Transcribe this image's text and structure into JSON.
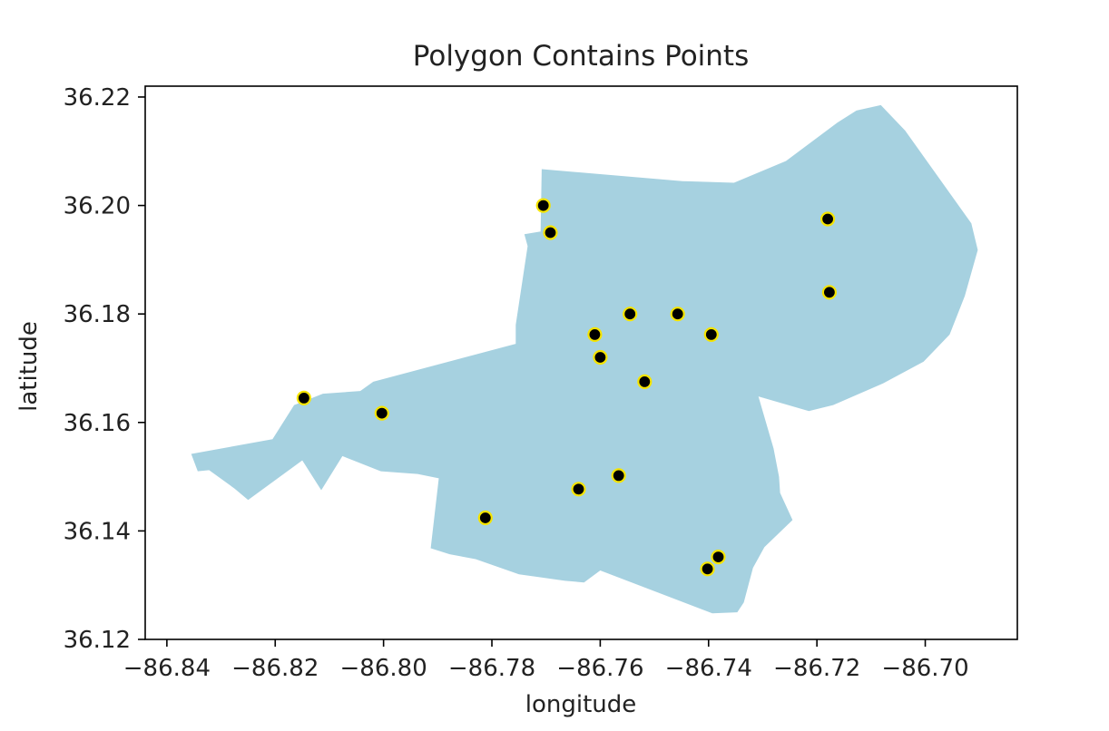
{
  "chart_data": {
    "type": "scatter",
    "title": "Polygon Contains Points",
    "xlabel": "longitude",
    "ylabel": "latitude",
    "xlim": [
      -86.844,
      -86.683
    ],
    "ylim": [
      36.12,
      36.222
    ],
    "xticks": [
      -86.84,
      -86.82,
      -86.8,
      -86.78,
      -86.76,
      -86.74,
      -86.72,
      -86.7
    ],
    "xtick_labels": [
      "−86.84",
      "−86.82",
      "−86.80",
      "−86.78",
      "−86.76",
      "−86.74",
      "−86.72",
      "−86.70"
    ],
    "yticks": [
      36.12,
      36.14,
      36.16,
      36.18,
      36.2,
      36.22
    ],
    "ytick_labels": [
      "36.12",
      "36.14",
      "36.16",
      "36.18",
      "36.20",
      "36.22"
    ],
    "grid": false,
    "polygon_color": "#a6d1e0",
    "point_color": "#000000",
    "point_edge_color": "#f5e400",
    "polygon": [
      [
        -86.8355,
        36.1542
      ],
      [
        -86.8205,
        36.1569
      ],
      [
        -86.8165,
        36.1632
      ],
      [
        -86.8112,
        36.1653
      ],
      [
        -86.8043,
        36.1658
      ],
      [
        -86.8019,
        36.1675
      ],
      [
        -86.7756,
        36.1745
      ],
      [
        -86.7756,
        36.178
      ],
      [
        -86.7734,
        36.1925
      ],
      [
        -86.774,
        36.1947
      ],
      [
        -86.771,
        36.1952
      ],
      [
        -86.7708,
        36.2067
      ],
      [
        -86.7448,
        36.2045
      ],
      [
        -86.7353,
        36.2042
      ],
      [
        -86.7257,
        36.2082
      ],
      [
        -86.7162,
        36.2153
      ],
      [
        -86.7127,
        36.2175
      ],
      [
        -86.7082,
        36.2185
      ],
      [
        -86.7037,
        36.2138
      ],
      [
        -86.6915,
        36.1967
      ],
      [
        -86.6903,
        36.1918
      ],
      [
        -86.6927,
        36.1833
      ],
      [
        -86.6955,
        36.1762
      ],
      [
        -86.7003,
        36.1712
      ],
      [
        -86.7078,
        36.1672
      ],
      [
        -86.717,
        36.1632
      ],
      [
        -86.7215,
        36.1621
      ],
      [
        -86.7308,
        36.1648
      ],
      [
        -86.728,
        36.1552
      ],
      [
        -86.727,
        36.15
      ],
      [
        -86.7268,
        36.147
      ],
      [
        -86.7245,
        36.142
      ],
      [
        -86.7297,
        36.137
      ],
      [
        -86.7318,
        36.1332
      ],
      [
        -86.7335,
        36.1268
      ],
      [
        -86.7347,
        36.125
      ],
      [
        -86.7393,
        36.1248
      ],
      [
        -86.76,
        36.1327
      ],
      [
        -86.763,
        36.1305
      ],
      [
        -86.7665,
        36.1308
      ],
      [
        -86.775,
        36.132
      ],
      [
        -86.783,
        36.1348
      ],
      [
        -86.7878,
        36.1357
      ],
      [
        -86.7913,
        36.1368
      ],
      [
        -86.7898,
        36.1497
      ],
      [
        -86.7937,
        36.1505
      ],
      [
        -86.8005,
        36.151
      ],
      [
        -86.8076,
        36.1538
      ],
      [
        -86.8115,
        36.1475
      ],
      [
        -86.815,
        36.153
      ],
      [
        -86.825,
        36.1457
      ],
      [
        -86.8275,
        36.1478
      ],
      [
        -86.8322,
        36.1512
      ],
      [
        -86.8343,
        36.151
      ]
    ],
    "points": [
      {
        "x": -86.8147,
        "y": 36.1645
      },
      {
        "x": -86.8003,
        "y": 36.1617
      },
      {
        "x": -86.7812,
        "y": 36.1424
      },
      {
        "x": -86.7705,
        "y": 36.2
      },
      {
        "x": -86.7692,
        "y": 36.195
      },
      {
        "x": -86.764,
        "y": 36.1477
      },
      {
        "x": -86.761,
        "y": 36.1762
      },
      {
        "x": -86.76,
        "y": 36.172
      },
      {
        "x": -86.7566,
        "y": 36.1502
      },
      {
        "x": -86.7545,
        "y": 36.18
      },
      {
        "x": -86.7518,
        "y": 36.1675
      },
      {
        "x": -86.7457,
        "y": 36.18
      },
      {
        "x": -86.7402,
        "y": 36.133
      },
      {
        "x": -86.7395,
        "y": 36.1762
      },
      {
        "x": -86.7382,
        "y": 36.1352
      },
      {
        "x": -86.718,
        "y": 36.1975
      },
      {
        "x": -86.7177,
        "y": 36.184
      }
    ]
  }
}
